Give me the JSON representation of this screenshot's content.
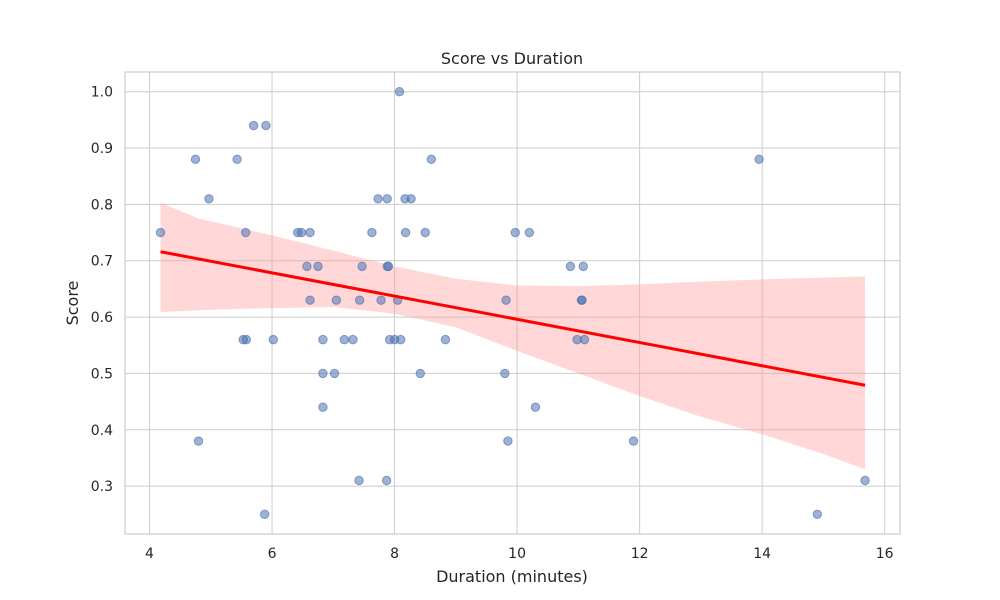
{
  "chart_data": {
    "type": "scatter",
    "title": "Score vs Duration",
    "xlabel": "Duration (minutes)",
    "ylabel": "Score",
    "xlim": [
      3.6,
      16.25
    ],
    "ylim": [
      0.215,
      1.035
    ],
    "xticks": [
      "4",
      "6",
      "8",
      "10",
      "12",
      "14",
      "16"
    ],
    "yticks": [
      "0.3",
      "0.4",
      "0.5",
      "0.6",
      "0.7",
      "0.8",
      "0.9",
      "1.0"
    ],
    "grid": true,
    "colors": {
      "points": "#4c72b0",
      "regression": "#ff0000",
      "band": "#ff9a9a"
    },
    "series": [
      {
        "points": [
          [
            4.18,
            0.75
          ],
          [
            4.75,
            0.88
          ],
          [
            4.8,
            0.38
          ],
          [
            4.97,
            0.81
          ],
          [
            5.43,
            0.88
          ],
          [
            5.53,
            0.56
          ],
          [
            5.57,
            0.75
          ],
          [
            5.58,
            0.56
          ],
          [
            5.7,
            0.94
          ],
          [
            5.88,
            0.25
          ],
          [
            5.9,
            0.94
          ],
          [
            6.02,
            0.56
          ],
          [
            6.42,
            0.75
          ],
          [
            6.48,
            0.75
          ],
          [
            6.57,
            0.69
          ],
          [
            6.62,
            0.75
          ],
          [
            6.62,
            0.63
          ],
          [
            6.75,
            0.69
          ],
          [
            6.83,
            0.56
          ],
          [
            6.83,
            0.5
          ],
          [
            6.83,
            0.44
          ],
          [
            7.02,
            0.5
          ],
          [
            7.05,
            0.63
          ],
          [
            7.18,
            0.56
          ],
          [
            7.32,
            0.56
          ],
          [
            7.42,
            0.31
          ],
          [
            7.43,
            0.63
          ],
          [
            7.47,
            0.69
          ],
          [
            7.63,
            0.75
          ],
          [
            7.73,
            0.81
          ],
          [
            7.78,
            0.63
          ],
          [
            7.87,
            0.31
          ],
          [
            7.88,
            0.81
          ],
          [
            7.88,
            0.69
          ],
          [
            7.9,
            0.69
          ],
          [
            7.92,
            0.56
          ],
          [
            8.0,
            0.56
          ],
          [
            8.05,
            0.63
          ],
          [
            8.08,
            1.0
          ],
          [
            8.1,
            0.56
          ],
          [
            8.17,
            0.81
          ],
          [
            8.18,
            0.75
          ],
          [
            8.27,
            0.81
          ],
          [
            8.42,
            0.5
          ],
          [
            8.5,
            0.75
          ],
          [
            8.6,
            0.88
          ],
          [
            8.83,
            0.56
          ],
          [
            9.8,
            0.5
          ],
          [
            9.82,
            0.63
          ],
          [
            9.85,
            0.38
          ],
          [
            9.97,
            0.75
          ],
          [
            10.2,
            0.75
          ],
          [
            10.3,
            0.44
          ],
          [
            10.87,
            0.69
          ],
          [
            10.98,
            0.56
          ],
          [
            11.05,
            0.63
          ],
          [
            11.06,
            0.63
          ],
          [
            11.08,
            0.69
          ],
          [
            11.1,
            0.56
          ],
          [
            11.9,
            0.38
          ],
          [
            13.95,
            0.88
          ],
          [
            14.9,
            0.25
          ],
          [
            15.68,
            0.31
          ]
        ]
      }
    ],
    "regression": {
      "line": [
        [
          4.18,
          0.716
        ],
        [
          15.68,
          0.479
        ]
      ],
      "ci_upper": [
        [
          4.18,
          0.803
        ],
        [
          4.8,
          0.775
        ],
        [
          6.0,
          0.745
        ],
        [
          7.0,
          0.718
        ],
        [
          8.0,
          0.69
        ],
        [
          9.0,
          0.668
        ],
        [
          10.0,
          0.656
        ],
        [
          11.0,
          0.655
        ],
        [
          12.0,
          0.658
        ],
        [
          13.0,
          0.663
        ],
        [
          14.0,
          0.667
        ],
        [
          15.0,
          0.67
        ],
        [
          15.68,
          0.672
        ]
      ],
      "ci_lower": [
        [
          4.18,
          0.609
        ],
        [
          5.0,
          0.613
        ],
        [
          6.0,
          0.616
        ],
        [
          7.0,
          0.618
        ],
        [
          8.0,
          0.606
        ],
        [
          9.0,
          0.582
        ],
        [
          10.0,
          0.54
        ],
        [
          11.0,
          0.5
        ],
        [
          12.0,
          0.46
        ],
        [
          13.0,
          0.423
        ],
        [
          14.0,
          0.392
        ],
        [
          15.0,
          0.357
        ],
        [
          15.68,
          0.33
        ]
      ]
    }
  }
}
